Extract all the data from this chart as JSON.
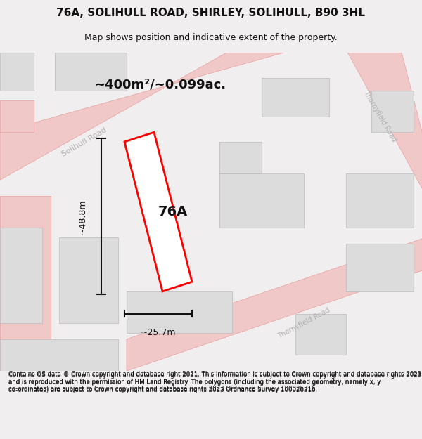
{
  "title": "76A, SOLIHULL ROAD, SHIRLEY, SOLIHULL, B90 3HL",
  "subtitle": "Map shows position and indicative extent of the property.",
  "area_label": "~400m²/~0.099ac.",
  "property_label": "76A",
  "dim_height": "~48.8m",
  "dim_width": "~25.7m",
  "footer_text": "Contains OS data © Crown copyright and database right 2021. This information is subject to Crown copyright and database rights 2023 and is reproduced with the permission of HM Land Registry. The polygons (including the associated geometry, namely x, y co-ordinates) are subject to Crown copyright and database rights 2023 Ordnance Survey 100026316.",
  "bg_color": "#f0eeee",
  "map_bg": "#f5f3f3",
  "road_color": "#f0c8c8",
  "road_stroke": "#e8a0a0",
  "building_color": "#dcdcdc",
  "building_stroke": "#c8c8c8",
  "property_fill": "#ffffff",
  "property_stroke": "#ff0000",
  "dim_color": "#111111",
  "road_label_color": "#aaaaaa",
  "title_color": "#111111",
  "footer_color": "#111111"
}
